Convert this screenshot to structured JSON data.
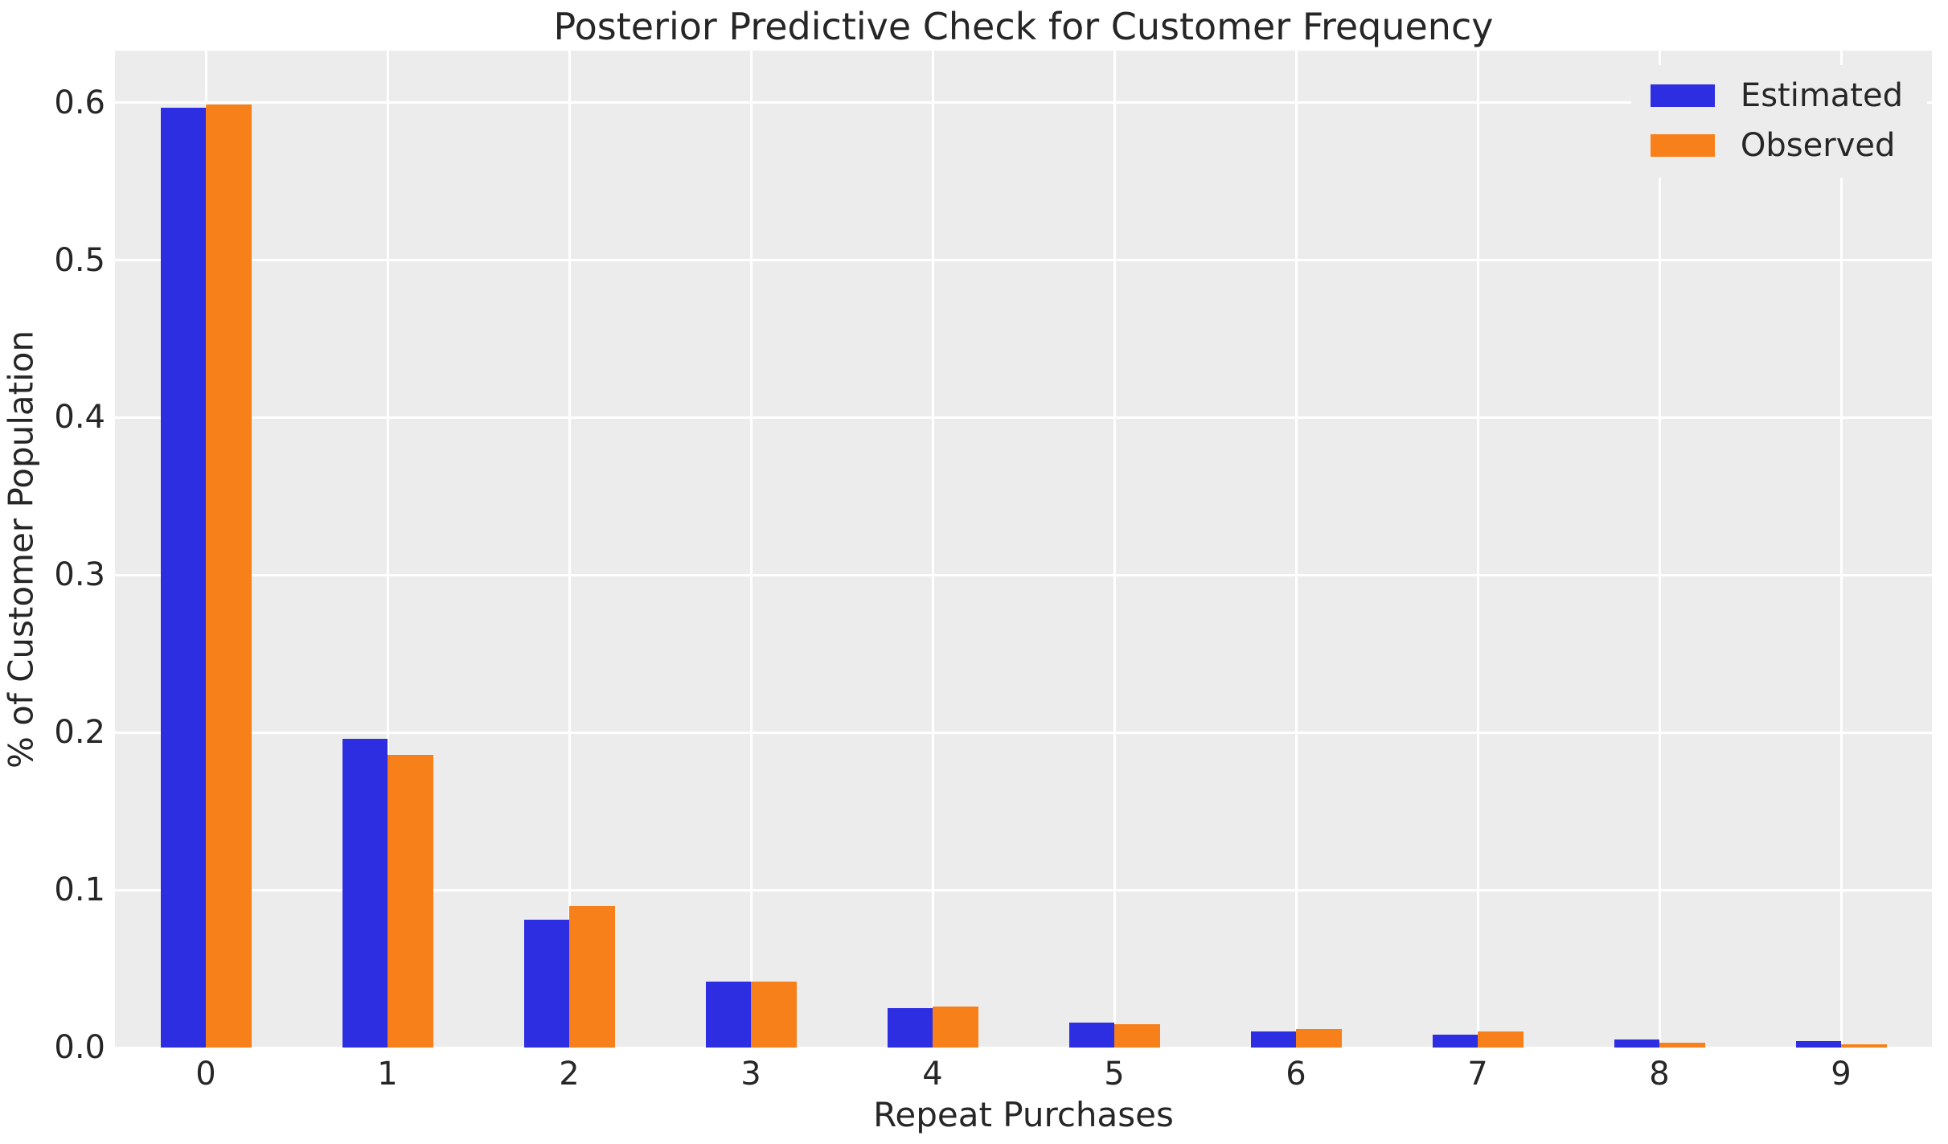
{
  "chart_data": {
    "type": "bar",
    "title": "Posterior Predictive Check for Customer Frequency",
    "xlabel": "Repeat Purchases",
    "ylabel": "% of Customer Population",
    "categories": [
      "0",
      "1",
      "2",
      "3",
      "4",
      "5",
      "6",
      "7",
      "8",
      "9"
    ],
    "series": [
      {
        "name": "Estimated",
        "color": "#2d2de2",
        "values": [
          0.597,
          0.196,
          0.081,
          0.042,
          0.025,
          0.016,
          0.01,
          0.008,
          0.005,
          0.004
        ]
      },
      {
        "name": "Observed",
        "color": "#f8801a",
        "values": [
          0.599,
          0.186,
          0.09,
          0.042,
          0.026,
          0.015,
          0.012,
          0.01,
          0.003,
          0.002
        ]
      }
    ],
    "ylim": [
      0,
      0.633
    ],
    "yticks": [
      0.0,
      0.1,
      0.2,
      0.3,
      0.4,
      0.5,
      0.6
    ],
    "ytick_labels": [
      "0.0",
      "0.1",
      "0.2",
      "0.3",
      "0.4",
      "0.5",
      "0.6"
    ],
    "grid": true,
    "legend_position": "upper right",
    "colors": {
      "plot_background": "#ececec",
      "grid": "#ffffff",
      "text": "#262626"
    }
  }
}
